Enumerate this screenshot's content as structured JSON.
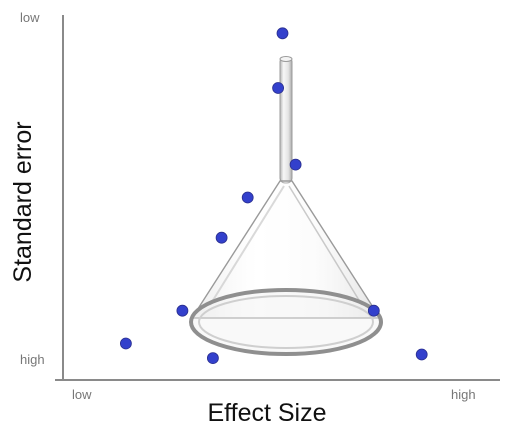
{
  "chart_data": {
    "type": "scatter",
    "title": "",
    "xlabel": "Effect Size",
    "ylabel": "Standard error",
    "x_tick_labels": {
      "left": "low",
      "right": "high"
    },
    "y_tick_labels": {
      "top": "low",
      "bottom": "high"
    },
    "xlim": [
      0,
      1
    ],
    "ylim": [
      0,
      1
    ],
    "y_inverted": true,
    "grid": false,
    "legend": "none",
    "point_color": "#3340cc",
    "decoration": "glass-funnel-illustration",
    "points": [
      {
        "x": 0.5,
        "y": 0.05
      },
      {
        "x": 0.49,
        "y": 0.2
      },
      {
        "x": 0.53,
        "y": 0.41
      },
      {
        "x": 0.42,
        "y": 0.5
      },
      {
        "x": 0.36,
        "y": 0.61
      },
      {
        "x": 0.27,
        "y": 0.81
      },
      {
        "x": 0.71,
        "y": 0.81
      },
      {
        "x": 0.14,
        "y": 0.9
      },
      {
        "x": 0.34,
        "y": 0.94
      },
      {
        "x": 0.82,
        "y": 0.93
      }
    ]
  }
}
